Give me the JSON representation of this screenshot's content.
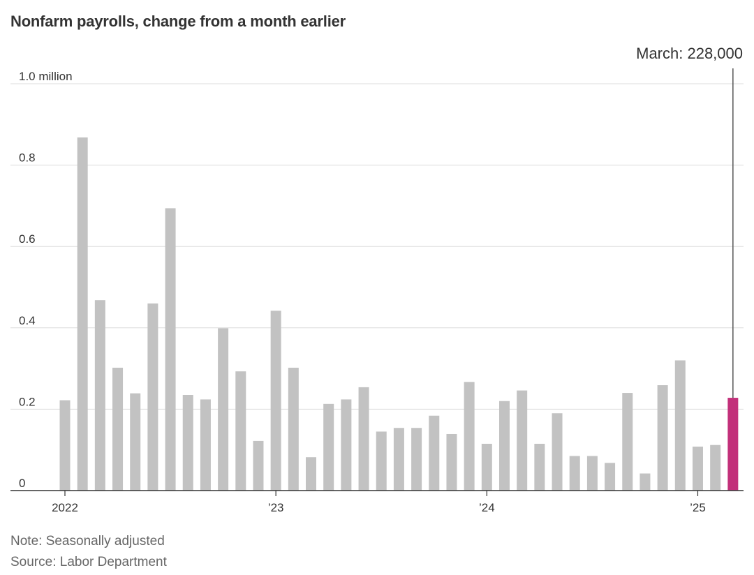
{
  "chart_data": {
    "type": "bar",
    "title": "Nonfarm payrolls, change from a month earlier",
    "y_unit_label": "1.0 million",
    "ylim": [
      0,
      1.0
    ],
    "y_ticks": [
      {
        "value": 0,
        "label": "0"
      },
      {
        "value": 0.2,
        "label": "0.2"
      },
      {
        "value": 0.4,
        "label": "0.4"
      },
      {
        "value": 0.6,
        "label": "0.6"
      },
      {
        "value": 0.8,
        "label": "0.8"
      },
      {
        "value": 1.0,
        "label": "1.0 million"
      }
    ],
    "x_ticks": [
      {
        "category": "2022-01",
        "label": "2022"
      },
      {
        "category": "2023-01",
        "label": "’23"
      },
      {
        "category": "2024-01",
        "label": "’24"
      },
      {
        "category": "2025-01",
        "label": "’25"
      }
    ],
    "grid": true,
    "categories": [
      "2022-01",
      "2022-02",
      "2022-03",
      "2022-04",
      "2022-05",
      "2022-06",
      "2022-07",
      "2022-08",
      "2022-09",
      "2022-10",
      "2022-11",
      "2022-12",
      "2023-01",
      "2023-02",
      "2023-03",
      "2023-04",
      "2023-05",
      "2023-06",
      "2023-07",
      "2023-08",
      "2023-09",
      "2023-10",
      "2023-11",
      "2023-12",
      "2024-01",
      "2024-02",
      "2024-03",
      "2024-04",
      "2024-05",
      "2024-06",
      "2024-07",
      "2024-08",
      "2024-09",
      "2024-10",
      "2024-11",
      "2024-12",
      "2025-01",
      "2025-02",
      "2025-03"
    ],
    "values": [
      0.222,
      0.868,
      0.468,
      0.302,
      0.239,
      0.46,
      0.694,
      0.235,
      0.224,
      0.399,
      0.293,
      0.122,
      0.442,
      0.302,
      0.082,
      0.213,
      0.224,
      0.254,
      0.145,
      0.154,
      0.154,
      0.184,
      0.139,
      0.267,
      0.115,
      0.22,
      0.246,
      0.115,
      0.19,
      0.085,
      0.085,
      0.068,
      0.24,
      0.042,
      0.259,
      0.32,
      0.108,
      0.112,
      0.228
    ],
    "colors": {
      "default": "#c2c2c2",
      "highlight": "#c2307a",
      "axis": "#333333",
      "grid": "#dcdcdc",
      "leader": "#555555"
    },
    "highlight_index": 38,
    "annotation": {
      "text": "March: 228,000",
      "index": 38
    }
  },
  "footer": {
    "note": "Note: Seasonally adjusted",
    "source": "Source: Labor Department"
  }
}
